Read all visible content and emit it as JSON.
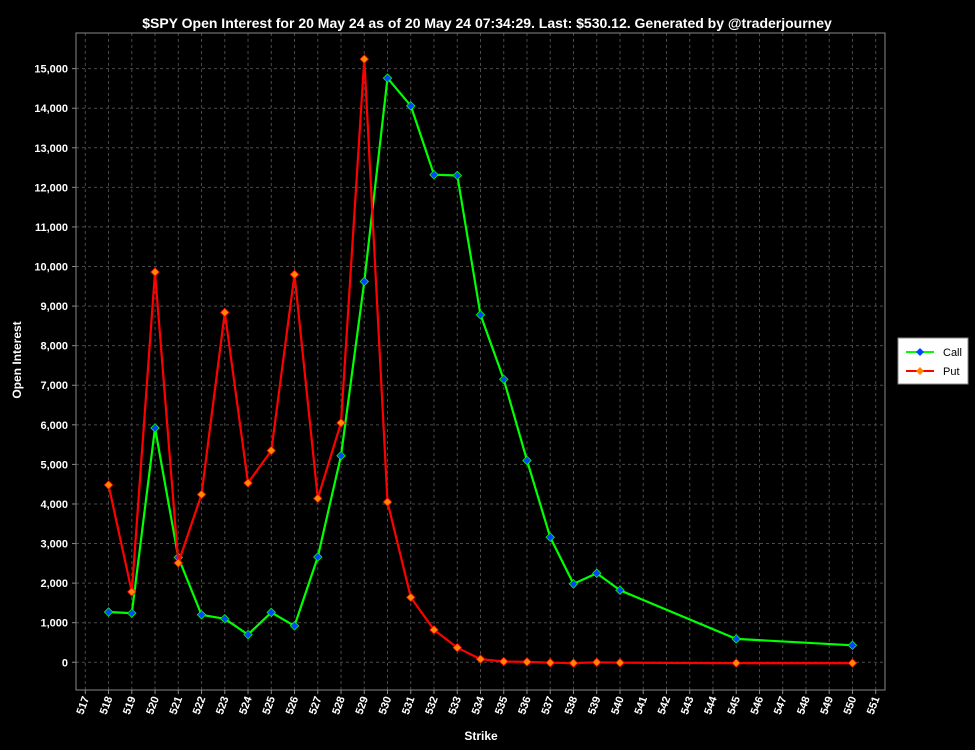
{
  "chart_data": {
    "type": "line",
    "title": "$SPY Open Interest for 20 May 24 as of 20 May 24 07:34:29.  Last: $530.12.  Generated by @traderjourney",
    "xlabel": "Strike",
    "ylabel": "Open Interest",
    "xlim": [
      516.6,
      551.4
    ],
    "ylim": [
      -700,
      15900
    ],
    "x_ticks": [
      517,
      518,
      519,
      520,
      521,
      522,
      523,
      524,
      525,
      526,
      527,
      528,
      529,
      530,
      531,
      532,
      533,
      534,
      535,
      536,
      537,
      538,
      539,
      540,
      541,
      542,
      543,
      544,
      545,
      546,
      547,
      548,
      549,
      550,
      551
    ],
    "y_ticks": [
      0,
      1000,
      2000,
      3000,
      4000,
      5000,
      6000,
      7000,
      8000,
      9000,
      10000,
      11000,
      12000,
      13000,
      14000,
      15000
    ],
    "y_tick_labels": [
      "0",
      "1,000",
      "2,000",
      "3,000",
      "4,000",
      "5,000",
      "6,000",
      "7,000",
      "8,000",
      "9,000",
      "10,000",
      "11,000",
      "12,000",
      "13,000",
      "14,000",
      "15,000"
    ],
    "grid": true,
    "legend_position": "right",
    "background": "#000000",
    "series": [
      {
        "name": "Call",
        "color": "#00ff00",
        "marker_color": "#0044ff",
        "x": [
          518,
          519,
          520,
          521,
          522,
          523,
          524,
          525,
          526,
          527,
          528,
          529,
          530,
          531,
          532,
          533,
          534,
          535,
          536,
          537,
          538,
          539,
          540,
          545,
          550
        ],
        "y": [
          1270,
          1240,
          5920,
          2650,
          1200,
          1100,
          700,
          1260,
          920,
          2660,
          5220,
          9620,
          14760,
          14060,
          12320,
          12300,
          8780,
          7150,
          5100,
          3160,
          1980,
          2250,
          1820,
          590,
          430
        ]
      },
      {
        "name": "Put",
        "color": "#ff0000",
        "marker_color": "#ff8800",
        "x": [
          518,
          519,
          520,
          521,
          522,
          523,
          524,
          525,
          526,
          527,
          528,
          529,
          530,
          531,
          532,
          533,
          534,
          535,
          536,
          537,
          538,
          539,
          540,
          545,
          550
        ],
        "y": [
          4480,
          1780,
          9860,
          2510,
          4240,
          8840,
          4530,
          5350,
          9800,
          4140,
          6050,
          15240,
          4050,
          1640,
          820,
          370,
          80,
          20,
          10,
          -10,
          -20,
          0,
          -10,
          -20,
          -20
        ]
      }
    ]
  }
}
